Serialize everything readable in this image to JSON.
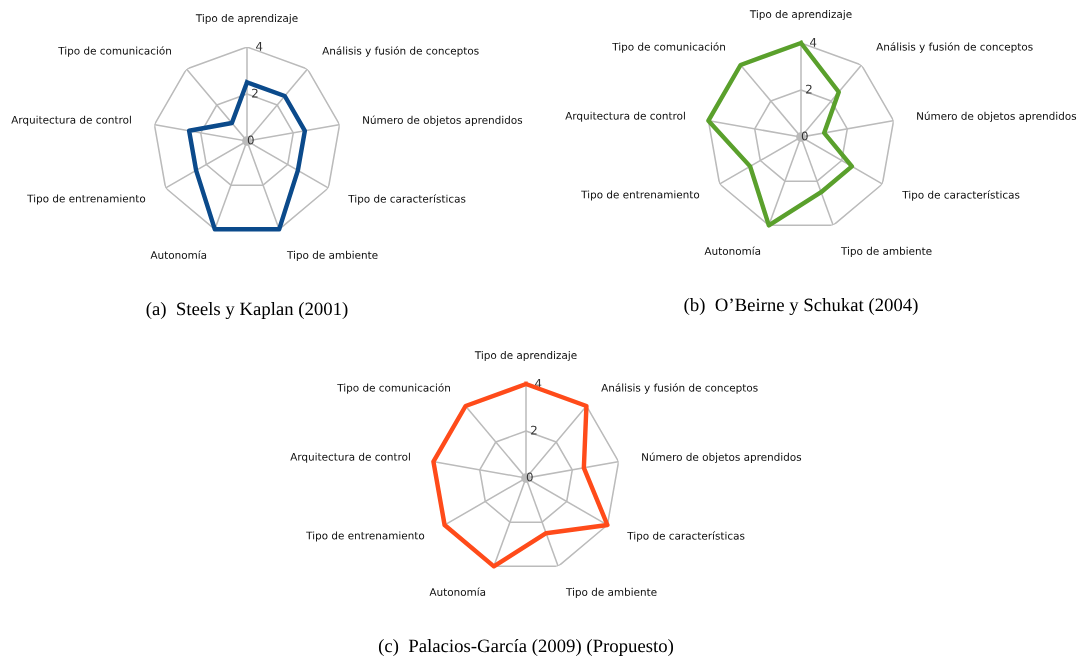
{
  "chart_data": [
    {
      "type": "radar",
      "title": "(a)  Steels y Kaplan (2001)",
      "categories": [
        "Tipo de aprendizaje",
        "Análisis y fusión de conceptos",
        "Número de objetos aprendidos",
        "Tipo de características",
        "Tipo de ambiente",
        "Autonomía",
        "Tipo de entrenamiento",
        "Arquitectura de control",
        "Tipo de comunicación"
      ],
      "ylim": [
        0,
        4
      ],
      "yticks": [
        0,
        2,
        4
      ],
      "grid": true,
      "series": [
        {
          "color": "#0b4a8b",
          "values": [
            2.5,
            2.5,
            2.5,
            2.5,
            4,
            4,
            2.5,
            2.5,
            1
          ]
        }
      ]
    },
    {
      "type": "radar",
      "title": "(b)  O’Beirne y Schukat (2004)",
      "categories": [
        "Tipo de aprendizaje",
        "Análisis y fusión de conceptos",
        "Número de objetos aprendidos",
        "Tipo de características",
        "Tipo de ambiente",
        "Autonomía",
        "Tipo de entrenamiento",
        "Arquitectura de control",
        "Tipo de comunicación"
      ],
      "ylim": [
        0,
        4
      ],
      "yticks": [
        0,
        2,
        4
      ],
      "grid": true,
      "series": [
        {
          "color": "#5aa02c",
          "values": [
            4,
            2.5,
            1,
            2.5,
            2.5,
            4,
            2.5,
            4,
            4
          ]
        }
      ]
    },
    {
      "type": "radar",
      "title": "(c)  Palacios-García (2009) (Propuesto)",
      "categories": [
        "Tipo de aprendizaje",
        "Análisis y fusión de conceptos",
        "Número de objetos aprendidos",
        "Tipo de características",
        "Tipo de ambiente",
        "Autonomía",
        "Tipo de entrenamiento",
        "Arquitectura de control",
        "Tipo de comunicación"
      ],
      "ylim": [
        0,
        4
      ],
      "yticks": [
        0,
        2,
        4
      ],
      "grid": true,
      "series": [
        {
          "color": "#ff4b1a",
          "values": [
            4,
            4,
            2.5,
            4,
            2.5,
            4,
            4,
            4,
            4
          ]
        }
      ]
    }
  ]
}
